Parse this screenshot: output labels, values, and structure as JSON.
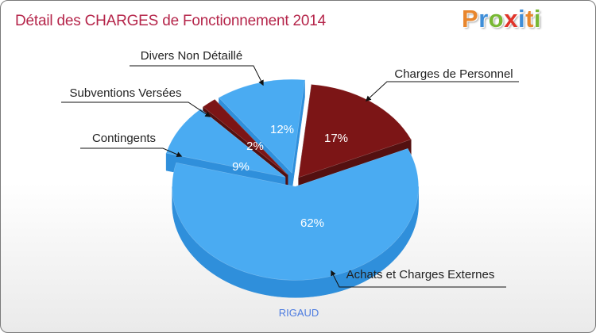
{
  "title": "Détail des CHARGES de Fonctionnement 2014",
  "logo": {
    "letters": [
      "P",
      "r",
      "o",
      "x",
      "i",
      "t",
      "i"
    ],
    "colors": [
      "#e8862d",
      "#3f8ed8",
      "#78b834",
      "#e0342a",
      "#3f8ed8",
      "#e8862d",
      "#78b834"
    ]
  },
  "commune": "RIGAUD",
  "colors": {
    "title": "#b5254a",
    "blue_top": "#4aabf2",
    "blue_side": "#2f8fdb",
    "red_top": "#7c1516",
    "red_side": "#541010"
  },
  "chart_data": {
    "type": "pie",
    "style": "3d-exploded",
    "title": "Détail des CHARGES de Fonctionnement 2014",
    "slices": [
      {
        "label": "Charges de Personnel",
        "percent": 17,
        "percent_label": "17%",
        "color": "#7c1516"
      },
      {
        "label": "Achats et Charges Externes",
        "percent": 62,
        "percent_label": "62%",
        "color": "#4aabf2"
      },
      {
        "label": "Contingents",
        "percent": 9,
        "percent_label": "9%",
        "color": "#4aabf2"
      },
      {
        "label": "Subventions Versées",
        "percent": 2,
        "percent_label": "2%",
        "color": "#7c1516"
      },
      {
        "label": "Divers Non Détaillé",
        "percent": 12,
        "percent_label": "12%",
        "color": "#4aabf2"
      }
    ]
  }
}
